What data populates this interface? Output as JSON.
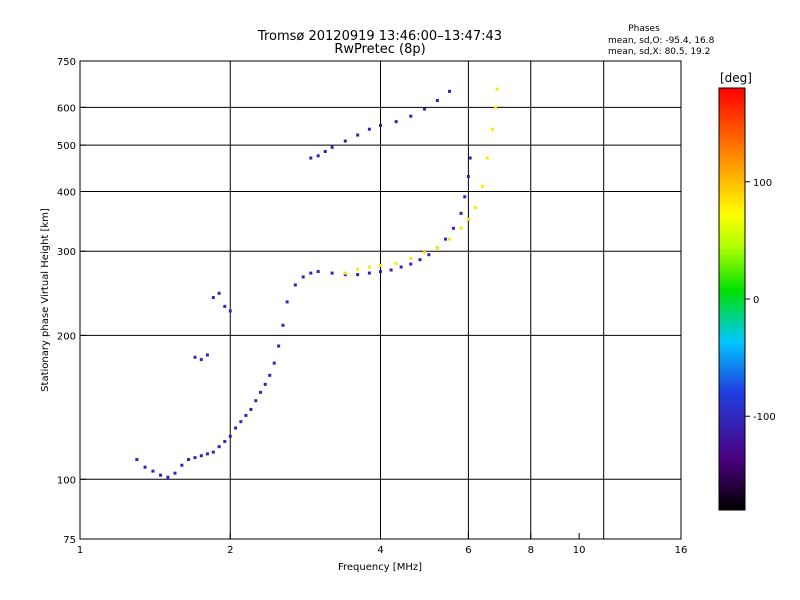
{
  "header": {
    "title_line1": "Tromsø 20120919 13:46:00–13:47:43",
    "title_line2": "RwPretec (8p)",
    "stats_title": "Phases",
    "stats_line1": "mean, sd,O:  -95.4, 16.8",
    "stats_line2": "mean, sd,X:   80.5, 19.2"
  },
  "colorbar": {
    "label": "[deg]",
    "range": [
      -180,
      180
    ],
    "ticks": [
      {
        "value": 100,
        "label": "100"
      },
      {
        "value": 0,
        "label": "0"
      },
      {
        "value": -100,
        "label": "-100"
      }
    ]
  },
  "chart_data": {
    "type": "scatter",
    "xlabel": "Frequency [MHz]",
    "ylabel": "Stationary phase Virtual Height [km]",
    "x_scale": "log",
    "y_scale": "log",
    "xlim": [
      1,
      16
    ],
    "ylim": [
      75,
      750
    ],
    "x_ticks": [
      {
        "value": 1,
        "label": "1"
      },
      {
        "value": 2,
        "label": "2"
      },
      {
        "value": 4,
        "label": "4"
      },
      {
        "value": 6,
        "label": "6"
      },
      {
        "value": 8,
        "label": "8"
      },
      {
        "value": 10,
        "label": "10"
      },
      {
        "value": 16,
        "label": "16"
      }
    ],
    "x_gridlines": [
      2,
      4,
      6,
      8,
      11.2
    ],
    "y_ticks": [
      {
        "value": 75,
        "label": "75"
      },
      {
        "value": 100,
        "label": "100"
      },
      {
        "value": 200,
        "label": "200"
      },
      {
        "value": 300,
        "label": "300"
      },
      {
        "value": 400,
        "label": "400"
      },
      {
        "value": 500,
        "label": "500"
      },
      {
        "value": 600,
        "label": "600"
      },
      {
        "value": 750,
        "label": "750"
      }
    ],
    "y_gridlines": [
      100,
      200,
      300,
      400,
      500,
      600
    ],
    "series": [
      {
        "mode": "O",
        "phase": -105,
        "points": [
          [
            1.3,
            110
          ],
          [
            1.35,
            106
          ],
          [
            1.4,
            104
          ],
          [
            1.45,
            102
          ],
          [
            1.5,
            101
          ],
          [
            1.55,
            103
          ],
          [
            1.6,
            107
          ],
          [
            1.65,
            110
          ],
          [
            1.7,
            111
          ],
          [
            1.75,
            112
          ],
          [
            1.8,
            113
          ],
          [
            1.85,
            114
          ],
          [
            1.9,
            117
          ],
          [
            1.95,
            120
          ],
          [
            2.0,
            123
          ],
          [
            2.05,
            128
          ],
          [
            2.1,
            132
          ],
          [
            2.15,
            136
          ],
          [
            2.2,
            140
          ],
          [
            2.25,
            146
          ],
          [
            2.3,
            152
          ],
          [
            2.35,
            158
          ],
          [
            2.4,
            165
          ],
          [
            2.45,
            175
          ],
          [
            2.5,
            190
          ],
          [
            2.55,
            210
          ],
          [
            2.6,
            235
          ],
          [
            2.7,
            255
          ],
          [
            2.8,
            265
          ],
          [
            2.9,
            270
          ],
          [
            3.0,
            272
          ],
          [
            3.2,
            270
          ],
          [
            3.4,
            268
          ],
          [
            3.6,
            268
          ],
          [
            3.8,
            270
          ],
          [
            4.0,
            272
          ],
          [
            4.2,
            274
          ],
          [
            4.4,
            278
          ],
          [
            4.6,
            282
          ],
          [
            4.8,
            288
          ],
          [
            5.0,
            295
          ],
          [
            5.2,
            305
          ],
          [
            5.4,
            318
          ],
          [
            5.6,
            335
          ],
          [
            5.8,
            360
          ],
          [
            5.9,
            390
          ],
          [
            6.0,
            430
          ],
          [
            6.05,
            470
          ]
        ]
      },
      {
        "mode": "O_upper",
        "phase": -110,
        "points": [
          [
            2.9,
            470
          ],
          [
            3.0,
            475
          ],
          [
            3.1,
            485
          ],
          [
            3.2,
            495
          ],
          [
            3.4,
            510
          ],
          [
            3.6,
            525
          ],
          [
            3.8,
            540
          ],
          [
            4.0,
            550
          ],
          [
            4.3,
            560
          ],
          [
            4.6,
            575
          ],
          [
            4.9,
            595
          ],
          [
            5.2,
            620
          ],
          [
            5.5,
            648
          ]
        ]
      },
      {
        "mode": "X",
        "phase": 82,
        "points": [
          [
            3.4,
            270
          ],
          [
            3.6,
            275
          ],
          [
            3.8,
            278
          ],
          [
            4.0,
            280
          ],
          [
            4.3,
            283
          ],
          [
            4.6,
            290
          ],
          [
            4.9,
            298
          ],
          [
            5.2,
            305
          ],
          [
            5.5,
            318
          ],
          [
            5.8,
            335
          ],
          [
            6.0,
            350
          ],
          [
            6.2,
            370
          ],
          [
            6.4,
            410
          ],
          [
            6.55,
            470
          ],
          [
            6.7,
            540
          ],
          [
            6.8,
            600
          ],
          [
            6.85,
            655
          ]
        ]
      },
      {
        "mode": "E/Es",
        "phase": -100,
        "points": [
          [
            1.85,
            240
          ],
          [
            1.9,
            245
          ],
          [
            1.95,
            230
          ],
          [
            2.0,
            225
          ],
          [
            1.7,
            180
          ],
          [
            1.75,
            178
          ],
          [
            1.8,
            182
          ]
        ]
      }
    ]
  }
}
